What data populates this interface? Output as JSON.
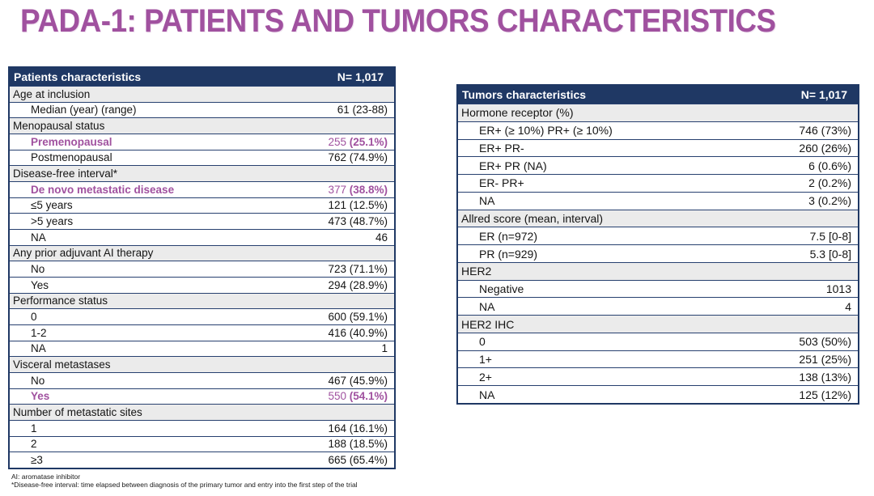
{
  "title": "PADA-1: PATIENTS AND TUMORS CHARACTERISTICS",
  "colors": {
    "accent_purple": "#A0519F",
    "header_navy": "#1F3864",
    "section_gray": "#EBEBEB",
    "highlight_purple": "#A0519F"
  },
  "tables": [
    {
      "header": {
        "label": "Patients characteristics",
        "n": "N= 1,017"
      },
      "rows": [
        {
          "type": "section",
          "label": "Age at inclusion",
          "value": ""
        },
        {
          "type": "data",
          "label": "Median (year) (range)",
          "value": "61 (23-88)"
        },
        {
          "type": "section",
          "label": "Menopausal status",
          "value": ""
        },
        {
          "type": "data",
          "label": "Premenopausal",
          "value": "255 (25.1%)",
          "highlight": true
        },
        {
          "type": "data",
          "label": "Postmenopausal",
          "value": "762 (74.9%)"
        },
        {
          "type": "section",
          "label": "Disease-free interval*",
          "value": ""
        },
        {
          "type": "data",
          "label": "De novo metastatic disease",
          "value": "377 (38.8%)",
          "highlight": true
        },
        {
          "type": "data",
          "label": "≤5 years",
          "value": "121 (12.5%)"
        },
        {
          "type": "data",
          "label": ">5 years",
          "value": "473 (48.7%)"
        },
        {
          "type": "data",
          "label": "NA",
          "value": "46"
        },
        {
          "type": "section",
          "label": "Any prior adjuvant AI therapy",
          "value": ""
        },
        {
          "type": "data",
          "label": "No",
          "value": "723 (71.1%)"
        },
        {
          "type": "data",
          "label": "Yes",
          "value": "294 (28.9%)"
        },
        {
          "type": "section",
          "label": "Performance status",
          "value": ""
        },
        {
          "type": "data",
          "label": "0",
          "value": "600 (59.1%)"
        },
        {
          "type": "data",
          "label": "1-2",
          "value": "416 (40.9%)"
        },
        {
          "type": "data",
          "label": "NA",
          "value": "1"
        },
        {
          "type": "section",
          "label": "Visceral metastases",
          "value": ""
        },
        {
          "type": "data",
          "label": "No",
          "value": "467 (45.9%)"
        },
        {
          "type": "data",
          "label": "Yes",
          "value": "550 (54.1%)",
          "highlight": true
        },
        {
          "type": "section",
          "label": "Number of metastatic sites",
          "value": ""
        },
        {
          "type": "data",
          "label": "1",
          "value": "164 (16.1%)"
        },
        {
          "type": "data",
          "label": "2",
          "value": "188 (18.5%)"
        },
        {
          "type": "data",
          "label": "≥3",
          "value": "665 (65.4%)"
        }
      ]
    },
    {
      "header": {
        "label": "Tumors characteristics",
        "n": "N= 1,017"
      },
      "rows": [
        {
          "type": "section",
          "label": "Hormone receptor (%)",
          "value": ""
        },
        {
          "type": "data",
          "label": "ER+ (≥ 10%) PR+ (≥ 10%)",
          "value": "746 (73%)"
        },
        {
          "type": "data",
          "label": "ER+ PR-",
          "value": "260 (26%)"
        },
        {
          "type": "data",
          "label": "ER+ PR (NA)",
          "value": "6 (0.6%)"
        },
        {
          "type": "data",
          "label": "ER- PR+",
          "value": "2 (0.2%)"
        },
        {
          "type": "data",
          "label": "NA",
          "value": "3 (0.2%)"
        },
        {
          "type": "section",
          "label": "Allred score (mean, interval)",
          "value": ""
        },
        {
          "type": "data",
          "label": "ER (n=972)",
          "value": "7.5 [0-8]"
        },
        {
          "type": "data",
          "label": "PR (n=929)",
          "value": "5.3 [0-8]"
        },
        {
          "type": "section",
          "label": "HER2",
          "value": ""
        },
        {
          "type": "data",
          "label": "Negative",
          "value": "1013"
        },
        {
          "type": "data",
          "label": "NA",
          "value": "4"
        },
        {
          "type": "section",
          "label": "HER2 IHC",
          "value": ""
        },
        {
          "type": "data",
          "label": "0",
          "value": "503 (50%)"
        },
        {
          "type": "data",
          "label": "1+",
          "value": "251 (25%)"
        },
        {
          "type": "data",
          "label": "2+",
          "value": "138 (13%)"
        },
        {
          "type": "data",
          "label": "NA",
          "value": "125 (12%)"
        }
      ]
    }
  ],
  "footnotes": [
    "AI: aromatase inhibitor",
    "*Disease-free interval: time elapsed between diagnosis of the primary tumor and entry into the first step of the trial"
  ]
}
